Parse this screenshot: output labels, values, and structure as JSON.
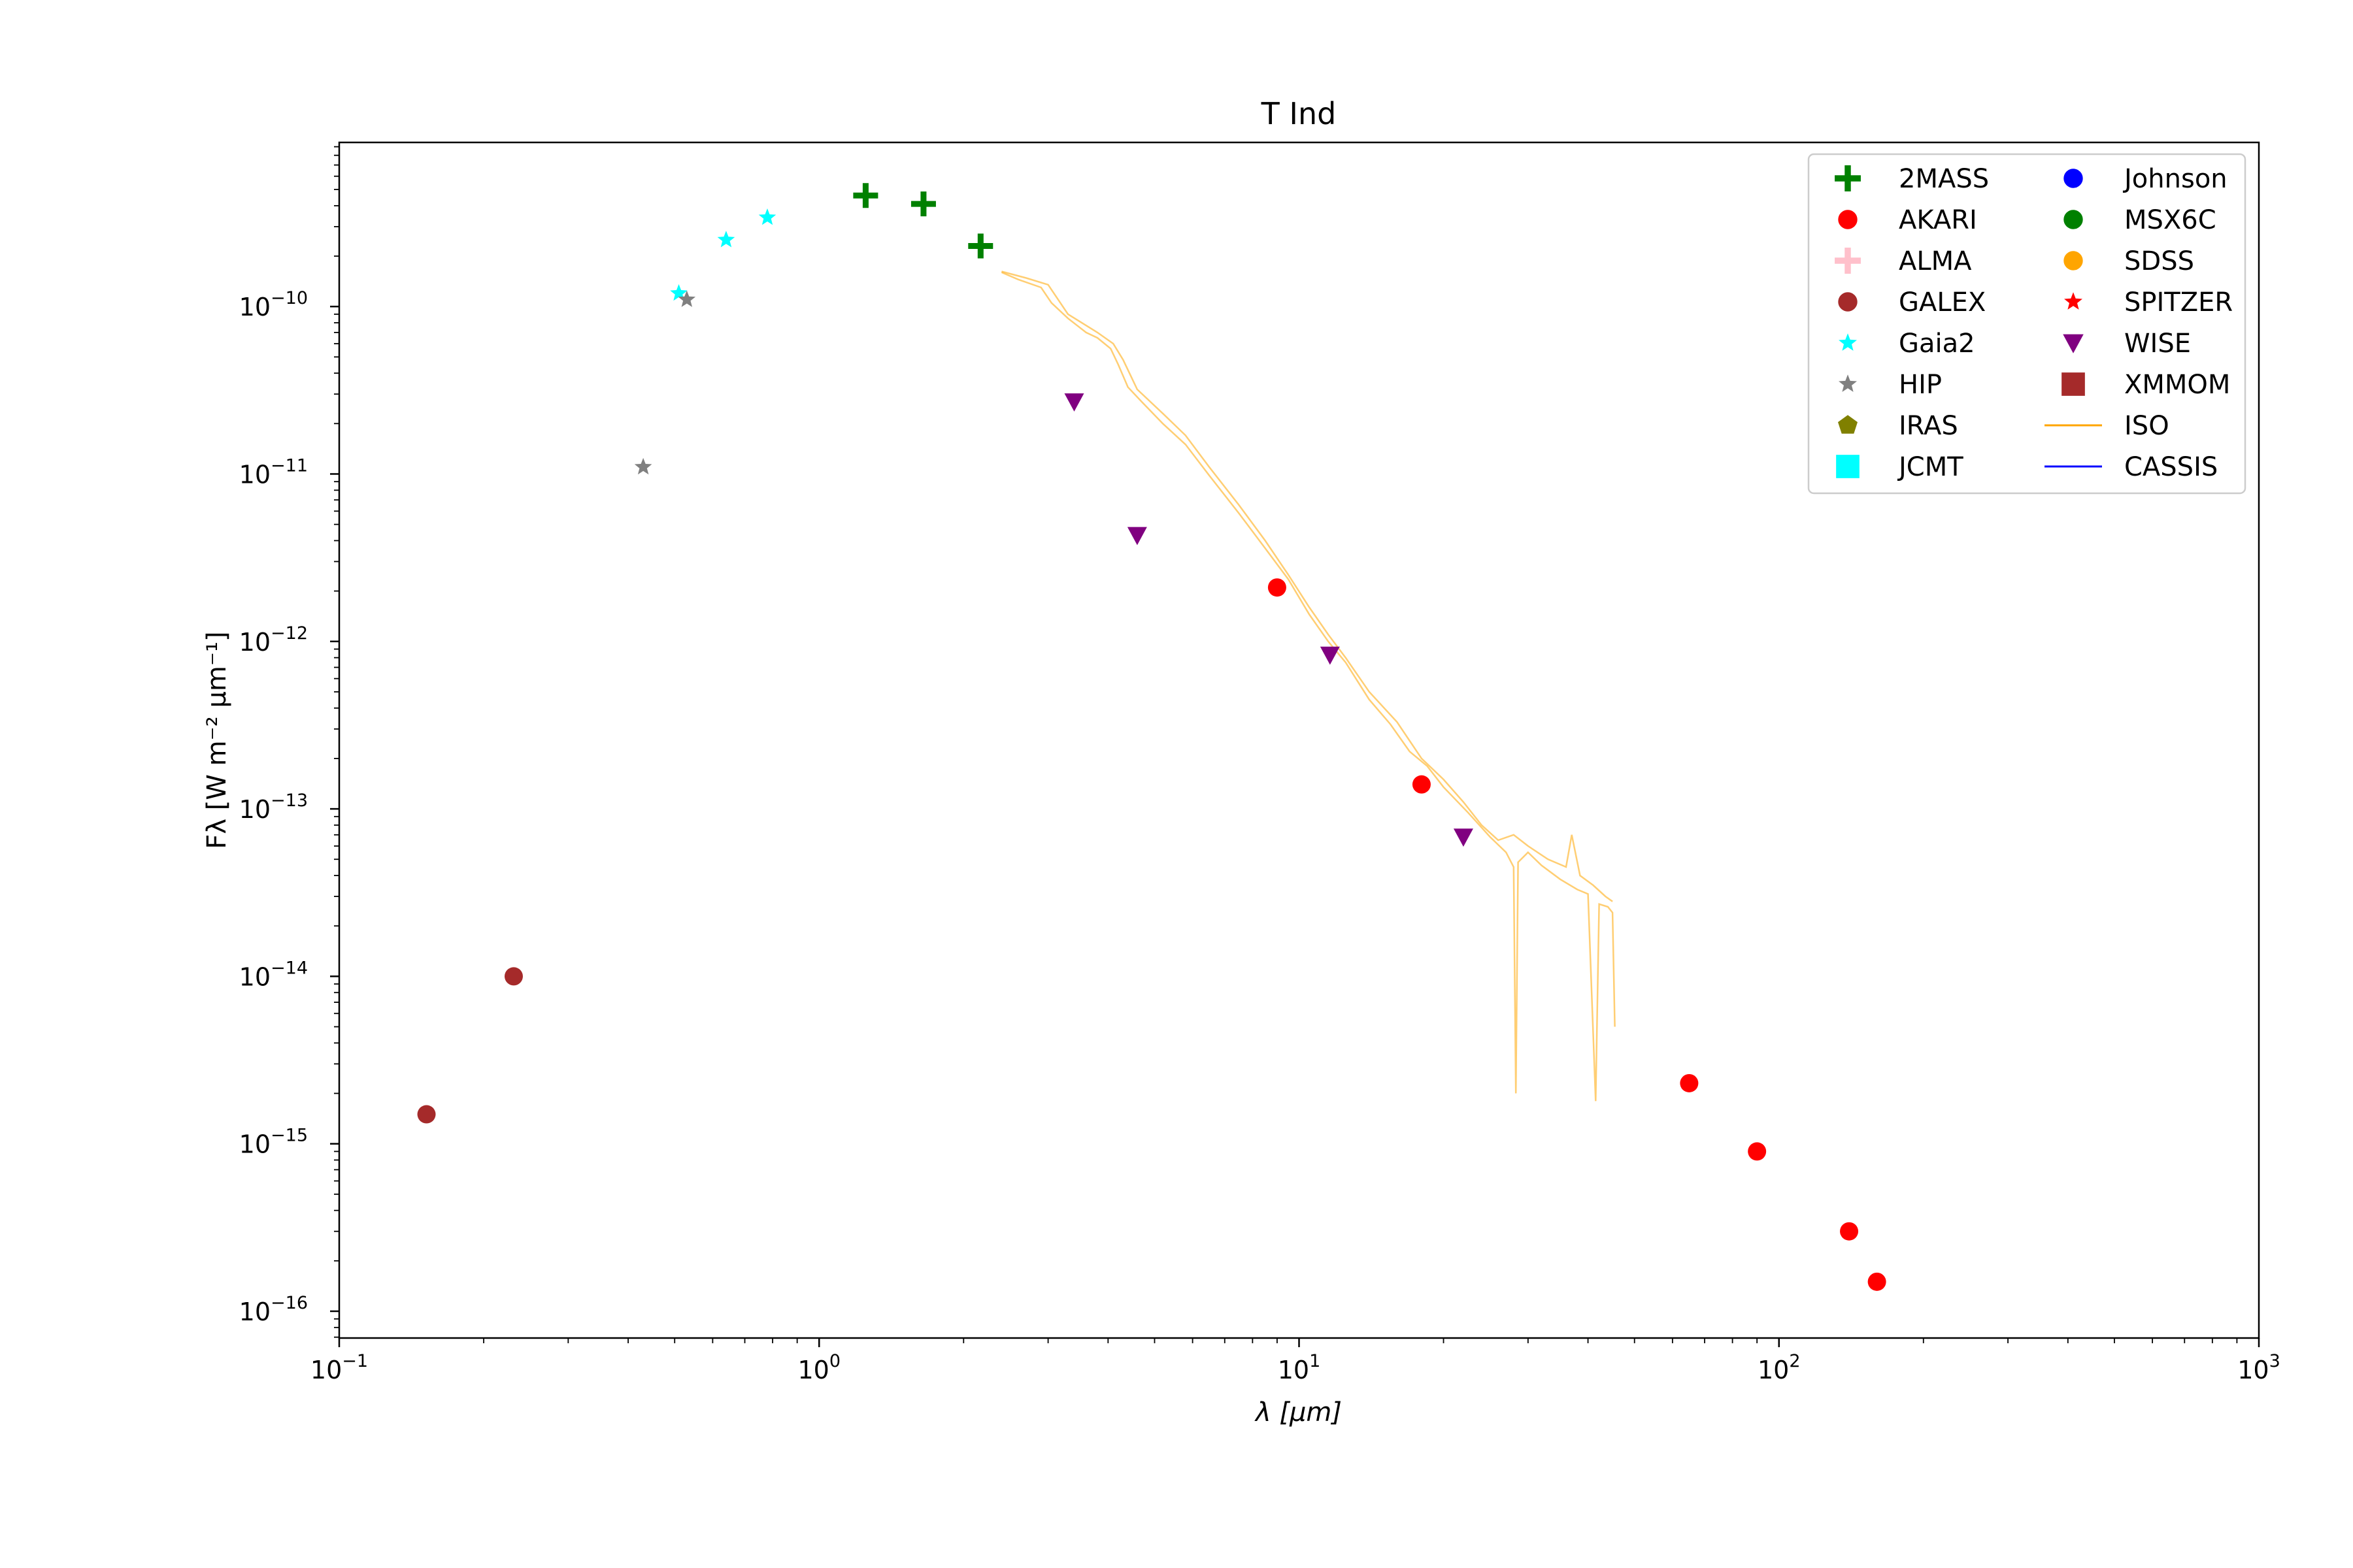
{
  "chart_data": {
    "type": "scatter",
    "title": "T Ind",
    "xlabel": "λ [μm]",
    "ylabel": "Fλ [W m⁻² μm⁻¹]",
    "xscale": "log",
    "yscale": "log",
    "xlim": [
      0.1,
      1000
    ],
    "ylim_exponents": [
      -16.16,
      -9.02
    ],
    "grid": false,
    "legend_position": "top-right",
    "legend_columns": 2,
    "x_ticks": [
      {
        "base": "10",
        "exp": "−1",
        "value": 0.1
      },
      {
        "base": "10",
        "exp": "0",
        "value": 1
      },
      {
        "base": "10",
        "exp": "1",
        "value": 10
      },
      {
        "base": "10",
        "exp": "2",
        "value": 100
      },
      {
        "base": "10",
        "exp": "3",
        "value": 1000
      }
    ],
    "y_ticks": [
      {
        "base": "10",
        "exp": "−10",
        "value": 1e-10
      },
      {
        "base": "10",
        "exp": "−11",
        "value": 1e-11
      },
      {
        "base": "10",
        "exp": "−12",
        "value": 1e-12
      },
      {
        "base": "10",
        "exp": "−13",
        "value": 1e-13
      },
      {
        "base": "10",
        "exp": "−14",
        "value": 1e-14
      },
      {
        "base": "10",
        "exp": "−15",
        "value": 1e-15
      },
      {
        "base": "10",
        "exp": "−16",
        "value": 1e-16
      }
    ],
    "legend": [
      {
        "name": "2MASS",
        "marker": "plus",
        "color": "#008000"
      },
      {
        "name": "AKARI",
        "marker": "circle",
        "color": "#ff0000"
      },
      {
        "name": "ALMA",
        "marker": "plus",
        "color": "#ffc0cb"
      },
      {
        "name": "GALEX",
        "marker": "circle",
        "color": "#a52a2a"
      },
      {
        "name": "Gaia2",
        "marker": "star",
        "color": "#00ffff"
      },
      {
        "name": "HIP",
        "marker": "star",
        "color": "#808080"
      },
      {
        "name": "IRAS",
        "marker": "pentagon",
        "color": "#808000"
      },
      {
        "name": "JCMT",
        "marker": "square",
        "color": "#00ffff"
      },
      {
        "name": "Johnson",
        "marker": "circle",
        "color": "#0000ff"
      },
      {
        "name": "MSX6C",
        "marker": "circle",
        "color": "#008000"
      },
      {
        "name": "SDSS",
        "marker": "circle",
        "color": "#ffa500"
      },
      {
        "name": "SPITZER",
        "marker": "star",
        "color": "#ff0000"
      },
      {
        "name": "WISE",
        "marker": "triangle-down",
        "color": "#800080"
      },
      {
        "name": "XMMOM",
        "marker": "square",
        "color": "#a52a2a"
      },
      {
        "name": "ISO",
        "marker": "line",
        "color": "#ffa500"
      },
      {
        "name": "CASSIS",
        "marker": "line",
        "color": "#0000ff"
      }
    ],
    "series": [
      {
        "name": "2MASS",
        "marker": "plus",
        "color": "#008000",
        "points": [
          [
            1.25,
            4.6e-10
          ],
          [
            1.65,
            4.1e-10
          ],
          [
            2.17,
            2.3e-10
          ]
        ]
      },
      {
        "name": "AKARI",
        "marker": "circle",
        "color": "#ff0000",
        "points": [
          [
            9.0,
            2.1e-12
          ],
          [
            18.0,
            1.4e-13
          ],
          [
            65,
            2.3e-15
          ],
          [
            90,
            9e-16
          ],
          [
            140,
            3e-16
          ],
          [
            160,
            1.5e-16
          ]
        ]
      },
      {
        "name": "GALEX",
        "marker": "circle",
        "color": "#a52a2a",
        "points": [
          [
            0.152,
            1.5e-15
          ],
          [
            0.231,
            1e-14
          ]
        ]
      },
      {
        "name": "Gaia2",
        "marker": "star",
        "color": "#00ffff",
        "points": [
          [
            0.51,
            1.2e-10
          ],
          [
            0.64,
            2.5e-10
          ],
          [
            0.78,
            3.4e-10
          ]
        ]
      },
      {
        "name": "HIP",
        "marker": "star",
        "color": "#808080",
        "points": [
          [
            0.43,
            1.1e-11
          ],
          [
            0.53,
            1.1e-10
          ]
        ]
      },
      {
        "name": "WISE",
        "marker": "triangle-down",
        "color": "#800080",
        "points": [
          [
            3.4,
            2.7e-11
          ],
          [
            4.6,
            4.3e-12
          ],
          [
            11.6,
            8.3e-13
          ],
          [
            22.0,
            6.8e-14
          ]
        ]
      }
    ],
    "iso_spectrum": {
      "name": "ISO",
      "color": "#ffa500",
      "points": [
        [
          2.4,
          1.6e-10
        ],
        [
          2.6,
          1.45e-10
        ],
        [
          2.9,
          1.3e-10
        ],
        [
          3.05,
          1.05e-10
        ],
        [
          3.3,
          8.5e-11
        ],
        [
          3.6,
          7e-11
        ],
        [
          3.8,
          6.5e-11
        ],
        [
          4.05,
          5.6e-11
        ],
        [
          4.2,
          4.5e-11
        ],
        [
          4.4,
          3.3e-11
        ],
        [
          4.7,
          2.7e-11
        ],
        [
          5.2,
          2e-11
        ],
        [
          5.8,
          1.5e-11
        ],
        [
          6.5,
          9.8e-12
        ],
        [
          7.5,
          5.8e-12
        ],
        [
          8.5,
          3.6e-12
        ],
        [
          9.5,
          2.35e-12
        ],
        [
          10.5,
          1.45e-12
        ],
        [
          11.5,
          1e-12
        ],
        [
          12.5,
          7.5e-13
        ],
        [
          14.0,
          4.5e-13
        ],
        [
          15.5,
          3.2e-13
        ],
        [
          17.0,
          2.2e-13
        ],
        [
          18.5,
          1.8e-13
        ],
        [
          20.0,
          1.35e-13
        ],
        [
          22.5,
          9.5e-14
        ],
        [
          25.0,
          6.8e-14
        ],
        [
          27.0,
          5.5e-14
        ],
        [
          28.0,
          4.5e-14
        ],
        [
          28.3,
          2e-15
        ],
        [
          28.6,
          4.8e-14
        ],
        [
          30.0,
          5.5e-14
        ],
        [
          32.0,
          4.6e-14
        ],
        [
          35.0,
          3.8e-14
        ],
        [
          38.0,
          3.3e-14
        ],
        [
          40.0,
          3.1e-14
        ],
        [
          41.5,
          1.8e-15
        ],
        [
          42.2,
          2.7e-14
        ],
        [
          44.0,
          2.6e-14
        ],
        [
          45.0,
          2.4e-14
        ],
        [
          45.5,
          5e-15
        ]
      ],
      "points_upper": [
        [
          2.4,
          1.62e-10
        ],
        [
          2.7,
          1.48e-10
        ],
        [
          3.0,
          1.35e-10
        ],
        [
          3.3,
          9e-11
        ],
        [
          3.8,
          7e-11
        ],
        [
          4.1,
          6e-11
        ],
        [
          4.3,
          4.8e-11
        ],
        [
          4.6,
          3.2e-11
        ],
        [
          5.2,
          2.3e-11
        ],
        [
          5.8,
          1.7e-11
        ],
        [
          6.5,
          1.1e-11
        ],
        [
          7.5,
          6.5e-12
        ],
        [
          8.5,
          4e-12
        ],
        [
          9.5,
          2.5e-12
        ],
        [
          10.5,
          1.6e-12
        ],
        [
          11.5,
          1.1e-12
        ],
        [
          12.5,
          8e-13
        ],
        [
          14.0,
          5e-13
        ],
        [
          16.0,
          3.3e-13
        ],
        [
          18.0,
          2e-13
        ],
        [
          20.0,
          1.5e-13
        ],
        [
          22.0,
          1.1e-13
        ],
        [
          24.0,
          8e-14
        ],
        [
          26.0,
          6.5e-14
        ],
        [
          28.0,
          7e-14
        ],
        [
          30.0,
          6e-14
        ],
        [
          33.0,
          5e-14
        ],
        [
          36.0,
          4.5e-14
        ],
        [
          37.0,
          7e-14
        ],
        [
          38.5,
          4e-14
        ],
        [
          41.0,
          3.5e-14
        ],
        [
          43.5,
          3e-14
        ],
        [
          45.0,
          2.8e-14
        ]
      ]
    }
  }
}
